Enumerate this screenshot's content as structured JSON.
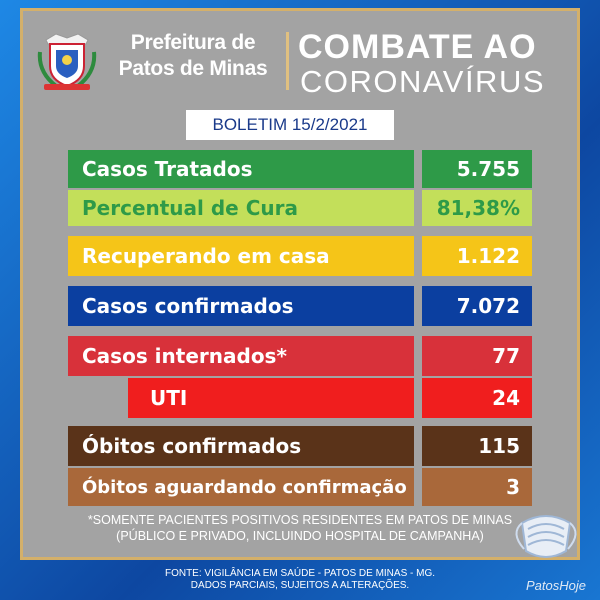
{
  "header": {
    "prefeitura_line1": "Prefeitura de",
    "prefeitura_line2": "Patos de Minas",
    "campaign_line1": "COMBATE AO",
    "campaign_line2": "CORONAVÍRUS"
  },
  "boletim": "BOLETIM 15/2/2021",
  "rows": [
    {
      "label": "Casos Tratados",
      "value": "5.755",
      "label_color": "#2e9a48",
      "label_text_color": "#ffffff",
      "value_color": "#2e9a48",
      "value_text_color": "#ffffff"
    },
    {
      "label": "Percentual de Cura",
      "value": "81,38%",
      "label_color": "#c3df5a",
      "label_text_color": "#2e9a48",
      "value_color": "#c3df5a",
      "value_text_color": "#2e9a48"
    },
    {
      "label": "Recuperando em casa",
      "value": "1.122",
      "label_color": "#f5c518",
      "label_text_color": "#ffffff",
      "value_color": "#f5c518",
      "value_text_color": "#ffffff"
    },
    {
      "label": "Casos confirmados",
      "value": "7.072",
      "label_color": "#0b3fa0",
      "label_text_color": "#ffffff",
      "value_color": "#0b3fa0",
      "value_text_color": "#ffffff"
    },
    {
      "label": "Casos internados*",
      "value": "77",
      "label_color": "#d8313a",
      "label_text_color": "#ffffff",
      "value_color": "#d8313a",
      "value_text_color": "#ffffff"
    },
    {
      "label": "UTI",
      "value": "24",
      "label_color": "#f01e1e",
      "label_text_color": "#ffffff",
      "value_color": "#f01e1e",
      "value_text_color": "#ffffff"
    },
    {
      "label": "Óbitos confirmados",
      "value": "115",
      "label_color": "#5a3319",
      "label_text_color": "#ffffff",
      "value_color": "#5a3319",
      "value_text_color": "#ffffff"
    },
    {
      "label": "Óbitos aguardando confirmação",
      "value": "3",
      "label_color": "#a9683a",
      "label_text_color": "#ffffff",
      "value_color": "#a9683a",
      "value_text_color": "#ffffff"
    }
  ],
  "note_line1": "*SOMENTE PACIENTES POSITIVOS RESIDENTES EM PATOS DE MINAS",
  "note_line2": "(PÚBLICO E PRIVADO, INCLUINDO HOSPITAL DE CAMPANHA)",
  "fonte_line1": "FONTE: VIGILÂNCIA EM SAÚDE - PATOS DE MINAS - MG.",
  "fonte_line2": "DADOS PARCIAIS, SUJEITOS A ALTERAÇÕES.",
  "brand": "PatosHoje",
  "icons": {
    "seal": "coat-of-arms-icon",
    "mask": "face-mask-icon"
  }
}
